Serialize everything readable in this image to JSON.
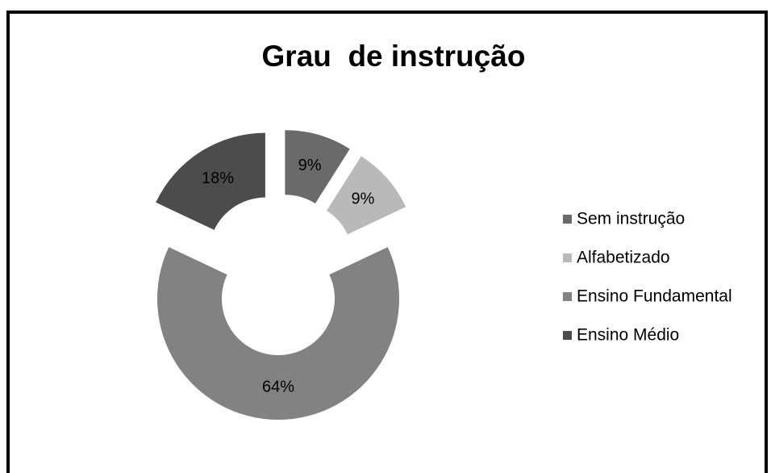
{
  "chart_data": {
    "type": "donut",
    "title": "Grau  de instrução",
    "categories": [
      "Sem instrução",
      "Alfabetizado",
      "Ensino Fundamental",
      "Ensino Médio"
    ],
    "values": [
      9,
      9,
      64,
      18
    ],
    "value_labels": [
      "9%",
      "9%",
      "64%",
      "18%"
    ],
    "colors": [
      "#6a6a6a",
      "#b9b9b9",
      "#828282",
      "#4c4c4c"
    ],
    "legend": "right"
  }
}
